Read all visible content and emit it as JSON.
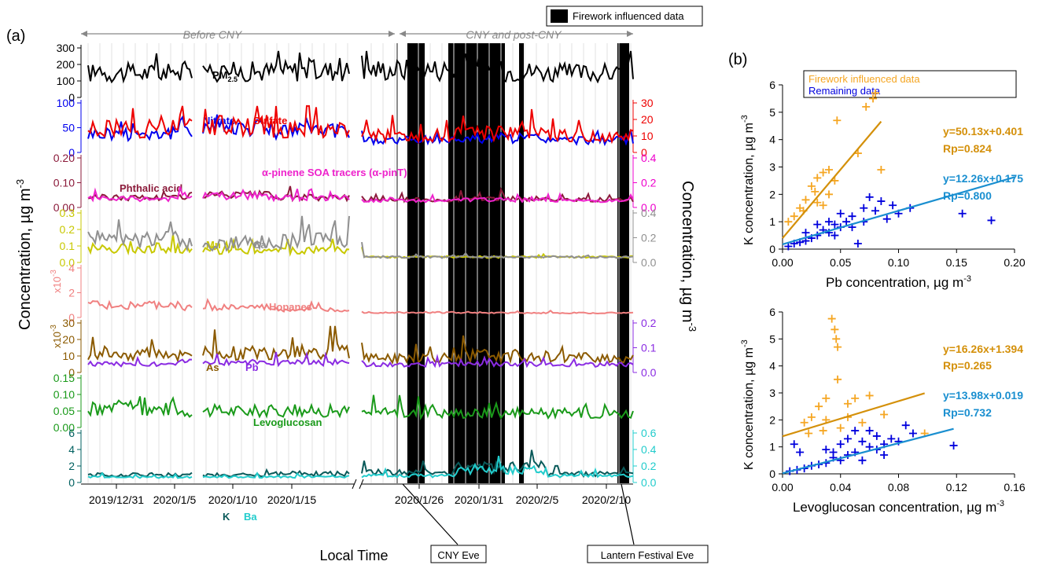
{
  "legend": {
    "firework": "Firework influenced data",
    "firework_color": "#fbe6c2"
  },
  "panel_a": {
    "label": "(a)",
    "period_before": "Before CNY",
    "period_after": "CNY and post-CNY",
    "ylabel_left": "Concentration, µg m",
    "ylabel_left_sup": "-3",
    "ylabel_right": "Concentration, µg m",
    "ylabel_right_sup": "-3",
    "xlabel": "Local Time",
    "callout_cny": "CNY Eve",
    "callout_lantern": "Lantern Festival Eve",
    "x_ticks": [
      "2019/12/31",
      "2020/1/5",
      "2020/1/10",
      "2020/1/15",
      "2020/1/26",
      "2020/1/31",
      "2020/2/5",
      "2020/2/10"
    ],
    "tracks": [
      {
        "id": "pm25",
        "left_ticks": [
          "300",
          "200",
          "100",
          "0"
        ],
        "left_color": "#000000",
        "right_ticks": [],
        "right_color": "#000000",
        "scale_left": "",
        "scale_left_sup": "",
        "series": [
          {
            "name": "PM",
            "name_sub": "2.5",
            "color": "#000000",
            "y_rel": [
              0.47,
              0.5,
              0.52,
              0.55,
              0.51,
              0.47
            ]
          }
        ]
      },
      {
        "id": "ions",
        "left_ticks": [
          "100",
          "50",
          "0"
        ],
        "left_color": "#0000ee",
        "right_ticks": [
          "30",
          "20",
          "10",
          "0"
        ],
        "right_color": "#ee0000",
        "scale_left": "",
        "scale_left_sup": "",
        "series": [
          {
            "name": "Nitrate",
            "color": "#0000ee",
            "y_rel": [
              0.35,
              0.5,
              0.4,
              0.2,
              0.25,
              0.2
            ]
          },
          {
            "name": "Sulfate",
            "color": "#ee0000",
            "y_rel": [
              0.45,
              0.55,
              0.45,
              0.3,
              0.35,
              0.3
            ]
          }
        ]
      },
      {
        "id": "soa",
        "left_ticks": [
          "0.20",
          "0.10",
          "0.00"
        ],
        "left_color": "#8b1a3a",
        "right_ticks": [
          "0.4",
          "0.2",
          "0.0"
        ],
        "right_color": "#ee00cc",
        "scale_left": "",
        "scale_left_sup": "",
        "series": [
          {
            "name": "Phthalic acid",
            "color": "#8b1a3a",
            "y_rel": [
              0.15,
              0.2,
              0.15,
              0.1,
              0.12,
              0.1
            ]
          },
          {
            "name": "α-pinene SOA tracers (α-pinT)",
            "color": "#ee22cc",
            "y_rel": [
              0.12,
              0.18,
              0.14,
              0.08,
              0.1,
              0.08
            ]
          }
        ]
      },
      {
        "id": "crust",
        "left_ticks": [
          "0.3",
          "0.2",
          "0.1",
          "0.0"
        ],
        "left_color": "#c8c800",
        "right_ticks": [
          "0.4",
          "0.2",
          "0.0"
        ],
        "right_color": "#909090",
        "scale_left": "",
        "scale_left_sup": "",
        "series": [
          {
            "name": "Mn",
            "color": "#c8c800",
            "y_rel": [
              0.25,
              0.2,
              0.2,
              0.05,
              0.05,
              0.05
            ]
          },
          {
            "name": "Ca",
            "color": "#909090",
            "y_rel": [
              0.45,
              0.35,
              0.4,
              0.05,
              0.05,
              0.05
            ]
          }
        ]
      },
      {
        "id": "hopanes",
        "left_ticks": [
          "4",
          "2",
          "0"
        ],
        "left_color": "#f08080",
        "right_ticks": [],
        "right_color": "#f08080",
        "scale_left": "x10",
        "scale_left_sup": "-3",
        "series": [
          {
            "name": "Hopanes",
            "color": "#f08080",
            "y_rel": [
              0.2,
              0.15,
              0.1,
              0.04,
              0.03,
              0.03
            ]
          }
        ]
      },
      {
        "id": "metals",
        "left_ticks": [
          "30",
          "20",
          "10",
          "0"
        ],
        "left_color": "#8b5a00",
        "right_ticks": [
          "0.2",
          "0.1",
          "0.0"
        ],
        "right_color": "#8a2be2",
        "scale_left": "x10",
        "scale_left_sup": "-3",
        "series": [
          {
            "name": "As",
            "color": "#8b5a00",
            "y_rel": [
              0.35,
              0.35,
              0.4,
              0.25,
              0.3,
              0.25
            ]
          },
          {
            "name": "Pb",
            "color": "#8a2be2",
            "y_rel": [
              0.12,
              0.15,
              0.15,
              0.1,
              0.12,
              0.1
            ]
          }
        ]
      },
      {
        "id": "levo",
        "left_ticks": [
          "0.15",
          "0.10",
          "0.05",
          "0.00"
        ],
        "left_color": "#1a9a1a",
        "right_ticks": [],
        "right_color": "#1a9a1a",
        "scale_left": "",
        "scale_left_sup": "",
        "series": [
          {
            "name": "Levoglucosan",
            "color": "#1a9a1a",
            "y_rel": [
              0.35,
              0.3,
              0.3,
              0.25,
              0.25,
              0.25
            ]
          }
        ]
      },
      {
        "id": "kba",
        "left_ticks": [
          "6",
          "4",
          "2",
          "0"
        ],
        "left_color": "#006060",
        "right_ticks": [
          "0.6",
          "0.4",
          "0.2",
          "0.0"
        ],
        "right_color": "#22cccc",
        "scale_left": "",
        "scale_left_sup": "",
        "series": [
          {
            "name": "K",
            "color": "#0a5a5a",
            "y_rel": [
              0.1,
              0.1,
              0.12,
              0.15,
              0.3,
              0.12
            ]
          },
          {
            "name": "Ba",
            "color": "#22cccc",
            "y_rel": [
              0.05,
              0.05,
              0.06,
              0.08,
              0.2,
              0.08
            ]
          }
        ]
      }
    ]
  },
  "panel_b": {
    "label": "(b)",
    "legend_firework": "Firework influenced data",
    "legend_remaining": "Remaining data",
    "firework_color": "#f5a623",
    "remaining_color": "#0000dd",
    "fit_firework_color": "#d4900a",
    "fit_remaining_color": "#1a8fd0",
    "ylabel": "K concentration, µg m",
    "ylabel_sup": "-3",
    "top": {
      "xlabel": "Pb concentration, µg m",
      "xlabel_sup": "-3",
      "x_ticks": [
        "0.00",
        "0.05",
        "0.10",
        "0.15",
        "0.20"
      ],
      "y_ticks": [
        "6",
        "5",
        "4",
        "3",
        "2",
        "1",
        "0"
      ],
      "eq_firework": "y=50.13x+0.401",
      "rp_firework": "Rp=0.824",
      "eq_remaining": "y=12.26x+0.175",
      "rp_remaining": "Rp=0.800"
    },
    "bottom": {
      "xlabel": "Levoglucosan concentration, µg m",
      "xlabel_sup": "-3",
      "x_ticks": [
        "0.00",
        "0.04",
        "0.08",
        "0.12",
        "0.16"
      ],
      "y_ticks": [
        "6",
        "5",
        "4",
        "3",
        "2",
        "1",
        "0"
      ],
      "eq_firework": "y=16.26x+1.394",
      "rp_firework": "Rp=0.265",
      "eq_remaining": "y=13.98x+0.019",
      "rp_remaining": "Rp=0.732"
    }
  },
  "chart_data": [
    {
      "type": "line",
      "xlabel": "Local Time",
      "x_ticks": [
        "2019/12/31",
        "2020/1/5",
        "2020/1/10",
        "2020/1/15",
        "2020/1/26",
        "2020/1/31",
        "2020/2/5",
        "2020/2/10"
      ],
      "series": [
        {
          "name": "PM2.5",
          "approx_range": [
            0,
            220
          ]
        },
        {
          "name": "Nitrate",
          "approx_range": [
            0,
            80
          ]
        },
        {
          "name": "Sulfate",
          "approx_range": [
            0,
            28
          ]
        },
        {
          "name": "Phthalic acid",
          "approx_range": [
            0,
            0.14
          ]
        },
        {
          "name": "α-pinene SOA tracers (α-pinT)",
          "approx_range": [
            0,
            0.35
          ]
        },
        {
          "name": "Mn",
          "approx_range": [
            0,
            0.2
          ]
        },
        {
          "name": "Ca",
          "approx_range": [
            0,
            0.35
          ]
        },
        {
          "name": "Hopanes",
          "approx_range": [
            0,
            0.003
          ]
        },
        {
          "name": "As",
          "approx_range": [
            0,
            0.028
          ]
        },
        {
          "name": "Pb",
          "approx_range": [
            0,
            0.2
          ]
        },
        {
          "name": "Levoglucosan",
          "approx_range": [
            0,
            0.11
          ]
        },
        {
          "name": "K",
          "approx_range": [
            0,
            6
          ]
        },
        {
          "name": "Ba",
          "approx_range": [
            0,
            0.6
          ]
        }
      ]
    },
    {
      "type": "scatter",
      "xlabel": "Pb concentration, µg m-3",
      "ylabel": "K concentration, µg m-3",
      "xlim": [
        0,
        0.2
      ],
      "ylim": [
        0,
        6
      ],
      "series": [
        {
          "name": "Firework influenced data",
          "fit": {
            "slope": 50.13,
            "intercept": 0.401,
            "rp": 0.824
          },
          "points": [
            [
              0.08,
              5.7
            ],
            [
              0.078,
              5.5
            ],
            [
              0.072,
              5.2
            ],
            [
              0.047,
              4.7
            ],
            [
              0.065,
              3.5
            ],
            [
              0.085,
              2.9
            ],
            [
              0.04,
              2.9
            ],
            [
              0.035,
              2.8
            ],
            [
              0.03,
              2.6
            ],
            [
              0.025,
              2.3
            ],
            [
              0.04,
              2.0
            ],
            [
              0.02,
              1.8
            ],
            [
              0.015,
              1.5
            ],
            [
              0.03,
              1.7
            ],
            [
              0.01,
              1.2
            ],
            [
              0.005,
              1.0
            ],
            [
              0.035,
              1.6
            ],
            [
              0.045,
              2.5
            ],
            [
              0.028,
              2.1
            ],
            [
              0.018,
              1.4
            ]
          ]
        },
        {
          "name": "Remaining data",
          "fit": {
            "slope": 12.26,
            "intercept": 0.175,
            "rp": 0.8
          },
          "points": [
            [
              0.18,
              1.05
            ],
            [
              0.155,
              1.3
            ],
            [
              0.11,
              1.5
            ],
            [
              0.1,
              1.3
            ],
            [
              0.085,
              1.75
            ],
            [
              0.09,
              1.1
            ],
            [
              0.075,
              1.9
            ],
            [
              0.07,
              1.0
            ],
            [
              0.065,
              0.2
            ],
            [
              0.06,
              1.2
            ],
            [
              0.055,
              1.0
            ],
            [
              0.05,
              0.8
            ],
            [
              0.045,
              0.9
            ],
            [
              0.04,
              0.6
            ],
            [
              0.035,
              0.7
            ],
            [
              0.03,
              0.5
            ],
            [
              0.025,
              0.4
            ],
            [
              0.02,
              0.3
            ],
            [
              0.015,
              0.25
            ],
            [
              0.01,
              0.2
            ],
            [
              0.005,
              0.1
            ],
            [
              0.08,
              1.4
            ],
            [
              0.095,
              1.6
            ],
            [
              0.06,
              0.8
            ],
            [
              0.05,
              1.3
            ],
            [
              0.04,
              1.0
            ],
            [
              0.03,
              0.9
            ],
            [
              0.02,
              0.6
            ],
            [
              0.07,
              1.5
            ],
            [
              0.045,
              0.5
            ]
          ]
        }
      ]
    },
    {
      "type": "scatter",
      "xlabel": "Levoglucosan concentration, µg m-3",
      "ylabel": "K concentration, µg m-3",
      "xlim": [
        0,
        0.16
      ],
      "ylim": [
        0,
        6
      ],
      "series": [
        {
          "name": "Firework influenced data",
          "fit": {
            "slope": 16.26,
            "intercept": 1.394,
            "rp": 0.265
          },
          "points": [
            [
              0.034,
              5.75
            ],
            [
              0.036,
              5.35
            ],
            [
              0.037,
              5.0
            ],
            [
              0.038,
              4.7
            ],
            [
              0.038,
              3.5
            ],
            [
              0.06,
              2.9
            ],
            [
              0.05,
              2.8
            ],
            [
              0.045,
              2.6
            ],
            [
              0.03,
              2.8
            ],
            [
              0.025,
              2.5
            ],
            [
              0.02,
              2.1
            ],
            [
              0.015,
              1.9
            ],
            [
              0.03,
              2.0
            ],
            [
              0.04,
              1.7
            ],
            [
              0.055,
              1.9
            ],
            [
              0.07,
              2.2
            ],
            [
              0.098,
              1.5
            ],
            [
              0.018,
              1.5
            ],
            [
              0.028,
              1.6
            ],
            [
              0.045,
              2.1
            ]
          ]
        },
        {
          "name": "Remaining data",
          "fit": {
            "slope": 13.98,
            "intercept": 0.019,
            "rp": 0.732
          },
          "points": [
            [
              0.118,
              1.05
            ],
            [
              0.09,
              1.5
            ],
            [
              0.085,
              1.8
            ],
            [
              0.075,
              1.3
            ],
            [
              0.07,
              1.1
            ],
            [
              0.065,
              0.9
            ],
            [
              0.06,
              1.6
            ],
            [
              0.055,
              1.2
            ],
            [
              0.05,
              0.8
            ],
            [
              0.045,
              0.7
            ],
            [
              0.04,
              0.5
            ],
            [
              0.035,
              0.6
            ],
            [
              0.03,
              0.4
            ],
            [
              0.025,
              0.35
            ],
            [
              0.02,
              0.3
            ],
            [
              0.015,
              0.2
            ],
            [
              0.01,
              0.15
            ],
            [
              0.005,
              0.1
            ],
            [
              0.008,
              1.1
            ],
            [
              0.012,
              0.8
            ],
            [
              0.05,
              1.6
            ],
            [
              0.06,
              1.0
            ],
            [
              0.07,
              0.7
            ],
            [
              0.04,
              1.1
            ],
            [
              0.03,
              0.9
            ],
            [
              0.055,
              0.5
            ],
            [
              0.08,
              1.2
            ],
            [
              0.045,
              1.3
            ],
            [
              0.065,
              1.4
            ],
            [
              0.035,
              0.8
            ]
          ]
        }
      ]
    }
  ]
}
